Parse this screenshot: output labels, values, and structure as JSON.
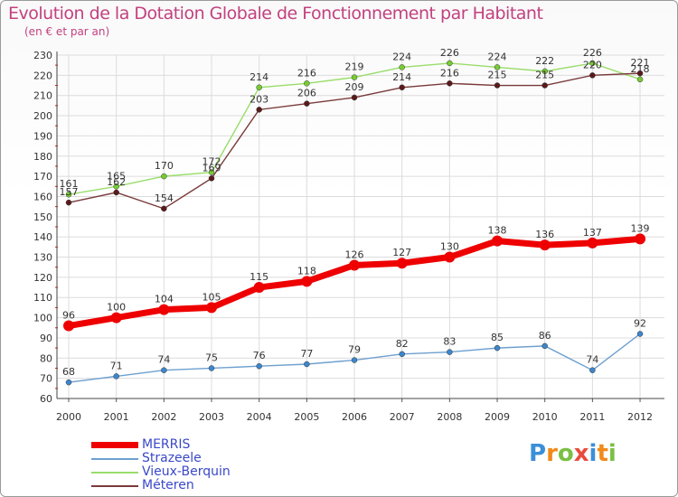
{
  "header": {
    "title": "Evolution de la Dotation Globale de Fonctionnement par Habitant",
    "subtitle": "(en € et par an)"
  },
  "chart_data": {
    "type": "line",
    "title": "Evolution de la Dotation Globale de Fonctionnement par Habitant",
    "subtitle": "(en € et par an)",
    "xlabel": "",
    "ylabel": "",
    "categories": [
      "2000",
      "2001",
      "2002",
      "2003",
      "2004",
      "2005",
      "2006",
      "2007",
      "2008",
      "2009",
      "2010",
      "2011",
      "2012"
    ],
    "ylim": [
      60,
      230
    ],
    "yticks": [
      60,
      70,
      80,
      90,
      100,
      110,
      120,
      130,
      140,
      150,
      160,
      170,
      180,
      190,
      200,
      210,
      220,
      230
    ],
    "grid": true,
    "legend_position": "bottom-left",
    "series": [
      {
        "name": "MERRIS",
        "color": "#ee0000",
        "emphasis": true,
        "values": [
          96,
          100,
          104,
          105,
          115,
          118,
          126,
          127,
          130,
          138,
          136,
          137,
          139
        ]
      },
      {
        "name": "Strazeele",
        "color": "#6ea0cf",
        "marker": "#3d86cc",
        "values": [
          68,
          71,
          74,
          75,
          76,
          77,
          79,
          82,
          83,
          85,
          86,
          74,
          92
        ]
      },
      {
        "name": "Vieux-Berquin",
        "color": "#99dd6a",
        "marker": "#77cc33",
        "values": [
          161,
          165,
          170,
          172,
          214,
          216,
          219,
          224,
          226,
          224,
          222,
          226,
          218
        ]
      },
      {
        "name": "Méteren",
        "color": "#7a3a3a",
        "marker": "#5a1a1a",
        "values": [
          157,
          162,
          154,
          169,
          203,
          206,
          209,
          214,
          216,
          215,
          215,
          220,
          221
        ]
      }
    ]
  },
  "logo": {
    "text": "Proxiti",
    "letters": [
      {
        "ch": "P",
        "color": "#3b8fd8"
      },
      {
        "ch": "r",
        "color": "#f08a1c"
      },
      {
        "ch": "o",
        "color": "#79c043"
      },
      {
        "ch": "x",
        "color": "#e84c3d"
      },
      {
        "ch": "i",
        "color": "#3b8fd8"
      },
      {
        "ch": "t",
        "color": "#f08a1c"
      },
      {
        "ch": "i",
        "color": "#79c043"
      }
    ]
  }
}
